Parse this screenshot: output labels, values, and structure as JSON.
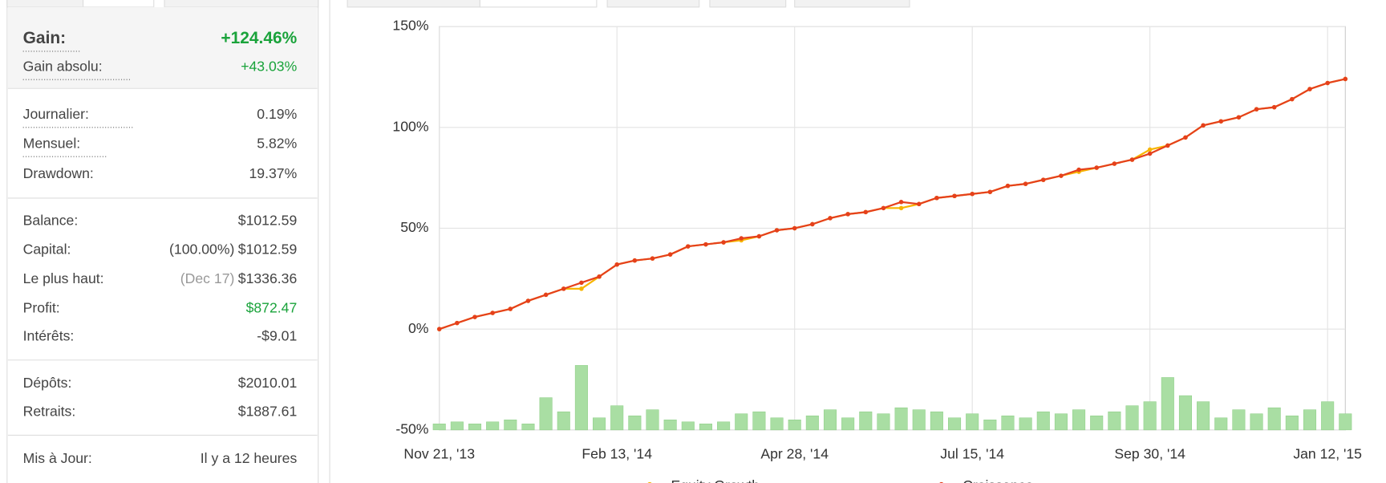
{
  "stats": {
    "groups": [
      [
        {
          "label": "Gain:",
          "value": "+124.46%"
        },
        {
          "label": "Gain absolu:",
          "value": "+43.03%"
        }
      ],
      [
        {
          "label": "Journalier:",
          "value": "0.19%"
        },
        {
          "label": "Mensuel:",
          "value": "5.82%"
        },
        {
          "label": "Drawdown:",
          "value": "19.37%"
        }
      ],
      [
        {
          "label": "Balance:",
          "value": "$1012.59"
        },
        {
          "label": "Capital:",
          "note": "(100.00%)",
          "value": "$1012.59"
        },
        {
          "label": "Le plus haut:",
          "note": "(Dec 17)",
          "value": "$1336.36"
        },
        {
          "label": "Profit:",
          "value": "$872.47"
        },
        {
          "label": "Intérêts:",
          "value": "-$9.01"
        }
      ],
      [
        {
          "label": "Dépôts:",
          "value": "$2010.01"
        },
        {
          "label": "Retraits:",
          "value": "$1887.61"
        }
      ],
      [
        {
          "label": "Mis à Jour:",
          "value": "Il y a 12 heures"
        }
      ]
    ]
  },
  "chart_data": {
    "type": "line",
    "categories": [
      "Nov 21, '13",
      null,
      null,
      null,
      null,
      null,
      null,
      null,
      null,
      null,
      "Feb 13, '14",
      null,
      null,
      null,
      null,
      null,
      null,
      null,
      null,
      null,
      "Apr 28, '14",
      null,
      null,
      null,
      null,
      null,
      null,
      null,
      null,
      null,
      "Jul 15, '14",
      null,
      null,
      null,
      null,
      null,
      null,
      null,
      null,
      null,
      "Sep 30, '14",
      null,
      null,
      null,
      null,
      null,
      null,
      null,
      null,
      null,
      "Jan 12, '15",
      null
    ],
    "series": [
      {
        "name": "Equity Growth",
        "color": "#f7b500",
        "values": [
          0,
          3,
          6,
          8,
          10,
          14,
          17,
          20,
          20,
          26,
          32,
          34,
          35,
          37,
          41,
          42,
          43,
          44,
          46,
          49,
          50,
          52,
          55,
          57,
          58,
          60,
          60,
          62,
          65,
          66,
          67,
          68,
          71,
          72,
          74,
          76,
          78,
          80,
          82,
          84,
          89,
          91,
          95,
          101,
          103,
          105,
          109,
          110,
          114,
          119,
          122,
          124
        ]
      },
      {
        "name": "Croissance",
        "color": "#e5401c",
        "values": [
          0,
          3,
          6,
          8,
          10,
          14,
          17,
          20,
          23,
          26,
          32,
          34,
          35,
          37,
          41,
          42,
          43,
          45,
          46,
          49,
          50,
          52,
          55,
          57,
          58,
          60,
          63,
          62,
          65,
          66,
          67,
          68,
          71,
          72,
          74,
          76,
          79,
          80,
          82,
          84,
          87,
          91,
          95,
          101,
          103,
          105,
          109,
          110,
          114,
          119,
          122,
          124
        ]
      }
    ],
    "volume_bars": {
      "color": "#a9dea3",
      "values": [
        -47,
        -46,
        -47,
        -46,
        -45,
        -47,
        -34,
        -41,
        -18,
        -44,
        -38,
        -43,
        -40,
        -45,
        -46,
        -47,
        -46,
        -42,
        -41,
        -44,
        -45,
        -43,
        -40,
        -44,
        -41,
        -42,
        -39,
        -40,
        -41,
        -44,
        -42,
        -45,
        -43,
        -44,
        -41,
        -42,
        -40,
        -43,
        -41,
        -38,
        -36,
        -24,
        -33,
        -36,
        -44,
        -40,
        -42,
        -39,
        -43,
        -40,
        -36,
        -42
      ]
    },
    "ylim": [
      -50,
      150
    ],
    "yticks": [
      {
        "value": -50,
        "label": "-50%"
      },
      {
        "value": 0,
        "label": "0%"
      },
      {
        "value": 50,
        "label": "50%"
      },
      {
        "value": 100,
        "label": "100%"
      },
      {
        "value": 150,
        "label": "150%"
      }
    ],
    "grid": true
  }
}
